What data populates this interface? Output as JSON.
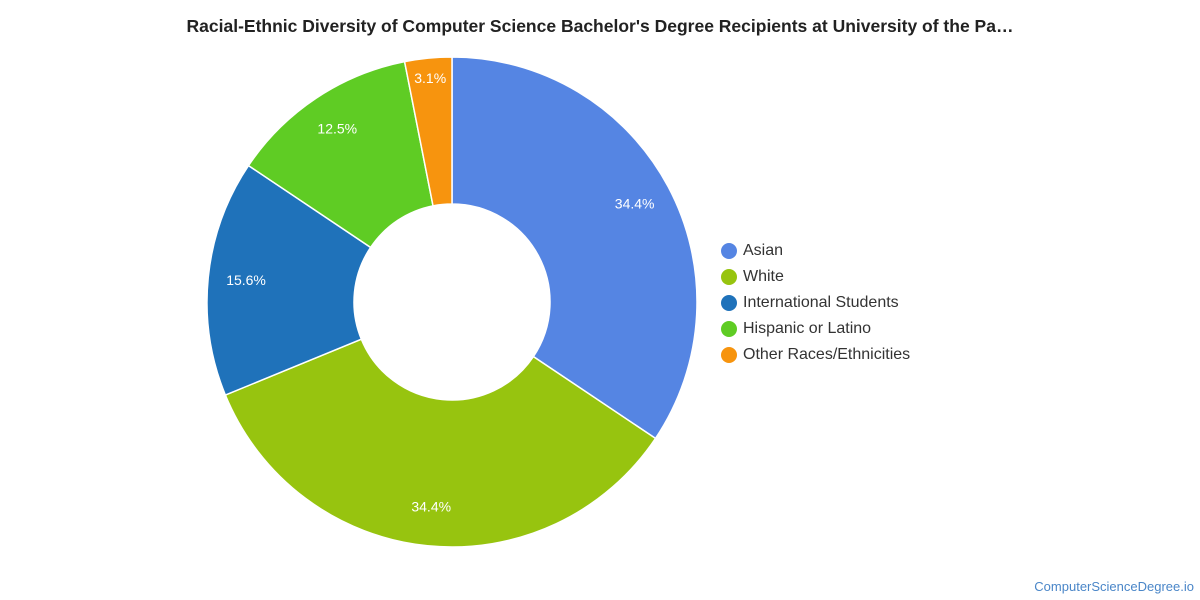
{
  "title": "Racial-Ethnic Diversity of Computer Science Bachelor's Degree Recipients at University of the Pa…",
  "chart_data": {
    "type": "pie",
    "subtype": "donut",
    "legend_position": "right",
    "slices": [
      {
        "name": "Asian",
        "value": 34.4,
        "label": "34.4%",
        "color": "#5585e3"
      },
      {
        "name": "White",
        "value": 34.4,
        "label": "34.4%",
        "color": "#97c40f"
      },
      {
        "name": "International Students",
        "value": 15.6,
        "label": "15.6%",
        "color": "#1f72ba"
      },
      {
        "name": "Hispanic or Latino",
        "value": 12.5,
        "label": "12.5%",
        "color": "#5fcc24"
      },
      {
        "name": "Other Races/Ethnicities",
        "value": 3.1,
        "label": "3.1%",
        "color": "#f7940e"
      }
    ]
  },
  "footer": {
    "source": "ComputerScienceDegree.io"
  }
}
